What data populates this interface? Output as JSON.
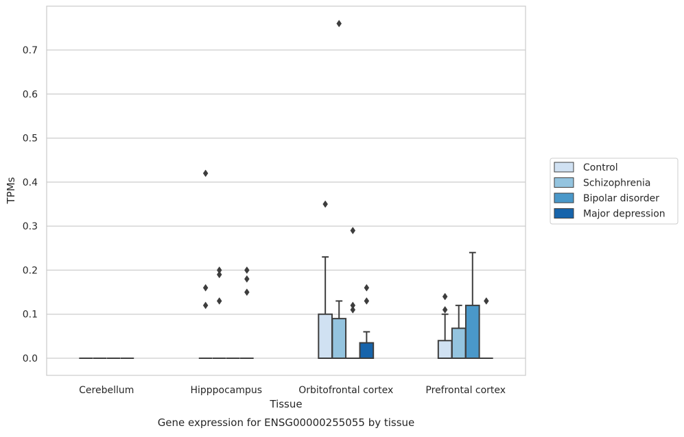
{
  "chart_data": {
    "type": "box",
    "caption": "Gene expression for ENSG00000255055 by tissue",
    "xlabel": "Tissue",
    "ylabel": "TPMs",
    "ylim": [
      -0.037,
      0.8
    ],
    "y_ticks": [
      "0.0",
      "0.1",
      "0.2",
      "0.3",
      "0.4",
      "0.5",
      "0.6",
      "0.7"
    ],
    "y_tick_values": [
      0,
      0.1,
      0.2,
      0.3,
      0.4,
      0.5,
      0.6,
      0.7
    ],
    "grid": true,
    "legend_position": "right",
    "categories": [
      "Cerebellum",
      "Hipppocampus",
      "Orbitofrontal cortex",
      "Prefrontal cortex"
    ],
    "series": [
      {
        "name": "Control",
        "color": "#d0e1f2",
        "boxes": [
          {
            "q1": 0,
            "median": 0,
            "q3": 0,
            "whisker_low": 0,
            "whisker_high": 0,
            "outliers": []
          },
          {
            "q1": 0,
            "median": 0,
            "q3": 0,
            "whisker_low": 0,
            "whisker_high": 0,
            "outliers": [
              0.42,
              0.16,
              0.12
            ]
          },
          {
            "q1": 0,
            "median": 0,
            "q3": 0.1,
            "whisker_low": 0,
            "whisker_high": 0.23,
            "outliers": [
              0.35
            ]
          },
          {
            "q1": 0,
            "median": 0,
            "q3": 0.04,
            "whisker_low": 0,
            "whisker_high": 0.1,
            "outliers": [
              0.14,
              0.11
            ]
          }
        ]
      },
      {
        "name": "Schizophrenia",
        "color": "#94c4df",
        "boxes": [
          {
            "q1": 0,
            "median": 0,
            "q3": 0,
            "whisker_low": 0,
            "whisker_high": 0,
            "outliers": []
          },
          {
            "q1": 0,
            "median": 0,
            "q3": 0,
            "whisker_low": 0,
            "whisker_high": 0,
            "outliers": [
              0.2,
              0.19,
              0.13
            ]
          },
          {
            "q1": 0,
            "median": 0,
            "q3": 0.09,
            "whisker_low": 0,
            "whisker_high": 0.13,
            "outliers": [
              0.76
            ]
          },
          {
            "q1": 0,
            "median": 0,
            "q3": 0.068,
            "whisker_low": 0,
            "whisker_high": 0.12,
            "outliers": []
          }
        ]
      },
      {
        "name": "Bipolar disorder",
        "color": "#4a98c9",
        "boxes": [
          {
            "q1": 0,
            "median": 0,
            "q3": 0,
            "whisker_low": 0,
            "whisker_high": 0,
            "outliers": []
          },
          {
            "q1": 0,
            "median": 0,
            "q3": 0,
            "whisker_low": 0,
            "whisker_high": 0,
            "outliers": []
          },
          {
            "q1": 0,
            "median": 0,
            "q3": 0,
            "whisker_low": 0,
            "whisker_high": 0,
            "outliers": [
              0.29,
              0.12,
              0.11
            ]
          },
          {
            "q1": 0,
            "median": 0,
            "q3": 0.12,
            "whisker_low": 0,
            "whisker_high": 0.24,
            "outliers": []
          }
        ]
      },
      {
        "name": "Major depression",
        "color": "#1764ab",
        "boxes": [
          {
            "q1": 0,
            "median": 0,
            "q3": 0,
            "whisker_low": 0,
            "whisker_high": 0,
            "outliers": []
          },
          {
            "q1": 0,
            "median": 0,
            "q3": 0,
            "whisker_low": 0,
            "whisker_high": 0,
            "outliers": [
              0.2,
              0.18,
              0.15
            ]
          },
          {
            "q1": 0,
            "median": 0,
            "q3": 0.035,
            "whisker_low": 0,
            "whisker_high": 0.06,
            "outliers": [
              0.16,
              0.13
            ]
          },
          {
            "q1": 0,
            "median": 0,
            "q3": 0,
            "whisker_low": 0,
            "whisker_high": 0,
            "outliers": [
              0.13
            ]
          }
        ]
      }
    ]
  }
}
